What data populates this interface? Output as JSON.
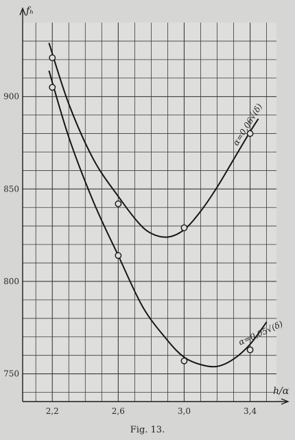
{
  "chart_data": {
    "type": "line",
    "caption": "Fig. 13.",
    "xlabel": "h/α",
    "ylabel": "fₕ",
    "x_ticks": [
      "2,2",
      "2,6",
      "3,0",
      "3,4"
    ],
    "y_ticks": [
      "750",
      "800",
      "850",
      "900"
    ],
    "xlim": [
      2.02,
      3.56
    ],
    "ylim": [
      735,
      940
    ],
    "grid": true,
    "series": [
      {
        "name": "α=0,06√(δ)",
        "points": [
          [
            2.2,
            921
          ],
          [
            2.6,
            842
          ],
          [
            3.0,
            829
          ],
          [
            3.4,
            880
          ]
        ],
        "curve": [
          [
            2.18,
            929
          ],
          [
            2.3,
            896
          ],
          [
            2.45,
            866
          ],
          [
            2.6,
            846
          ],
          [
            2.72,
            832
          ],
          [
            2.8,
            826
          ],
          [
            2.9,
            824
          ],
          [
            3.0,
            828
          ],
          [
            3.1,
            838
          ],
          [
            3.2,
            851
          ],
          [
            3.3,
            866
          ],
          [
            3.4,
            881
          ],
          [
            3.45,
            888
          ]
        ]
      },
      {
        "name": "α=0,05√(δ)",
        "points": [
          [
            2.2,
            905
          ],
          [
            2.6,
            814
          ],
          [
            3.0,
            757
          ],
          [
            3.4,
            763
          ]
        ],
        "curve": [
          [
            2.18,
            914
          ],
          [
            2.3,
            878
          ],
          [
            2.45,
            843
          ],
          [
            2.6,
            814
          ],
          [
            2.75,
            786
          ],
          [
            2.9,
            768
          ],
          [
            3.0,
            759
          ],
          [
            3.1,
            755
          ],
          [
            3.2,
            754
          ],
          [
            3.3,
            758
          ],
          [
            3.4,
            766
          ],
          [
            3.5,
            778
          ]
        ]
      }
    ]
  }
}
